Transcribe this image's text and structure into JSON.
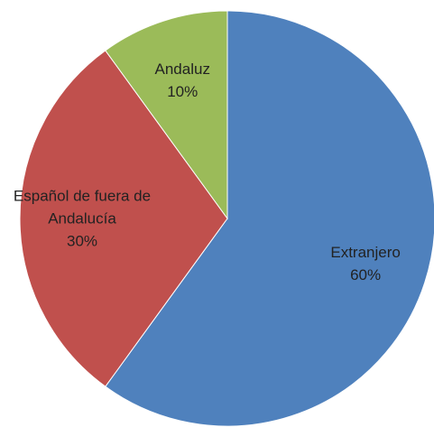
{
  "chart_data": {
    "type": "pie",
    "categories": [
      "Extranjero",
      "Español de fuera de Andalucía",
      "Andaluz"
    ],
    "values": [
      60,
      30,
      10
    ],
    "value_labels": [
      "60%",
      "30%",
      "10%"
    ],
    "colors": [
      "#4f81bd",
      "#c0504d",
      "#9bbb59"
    ]
  }
}
